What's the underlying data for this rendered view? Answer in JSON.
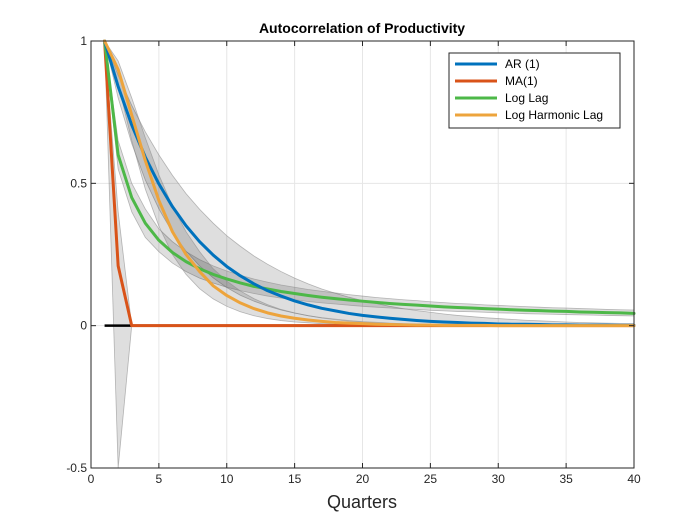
{
  "chart_data": {
    "type": "line",
    "title": "Autocorrelation of Productivity",
    "xlabel": "Quarters",
    "ylabel": "",
    "xlim": [
      0,
      40
    ],
    "ylim": [
      -0.5,
      1
    ],
    "xticks": [
      "0",
      "5",
      "10",
      "15",
      "20",
      "25",
      "30",
      "35",
      "40"
    ],
    "yticks": [
      "-0.5",
      "0",
      "0.5",
      "1"
    ],
    "grid": true,
    "legend_position": "top-right",
    "x": [
      1,
      2,
      3,
      4,
      5,
      6,
      7,
      8,
      9,
      10,
      11,
      12,
      13,
      14,
      15,
      16,
      17,
      18,
      19,
      20,
      21,
      22,
      23,
      24,
      25,
      26,
      27,
      28,
      29,
      30,
      31,
      32,
      33,
      34,
      35,
      36,
      37,
      38,
      39,
      40
    ],
    "series": [
      {
        "name": "AR (1)",
        "color": "#0072BD",
        "values": [
          1.0,
          0.84,
          0.705,
          0.592,
          0.498,
          0.418,
          0.351,
          0.295,
          0.248,
          0.208,
          0.175,
          0.147,
          0.123,
          0.104,
          0.087,
          0.073,
          0.061,
          0.052,
          0.043,
          0.036,
          0.031,
          0.026,
          0.022,
          0.018,
          0.015,
          0.013,
          0.011,
          0.009,
          0.008,
          0.006,
          0.005,
          0.005,
          0.004,
          0.003,
          0.003,
          0.002,
          0.002,
          0.002,
          0.001,
          0.001
        ],
        "band_lower": [
          1.0,
          0.8,
          0.64,
          0.512,
          0.41,
          0.328,
          0.262,
          0.21,
          0.168,
          0.134,
          0.107,
          0.086,
          0.069,
          0.055,
          0.044,
          0.035,
          0.028,
          0.023,
          0.018,
          0.014,
          0.012,
          0.009,
          0.007,
          0.006,
          0.005,
          0.004,
          0.003,
          0.002,
          0.002,
          0.002,
          0.001,
          0.001,
          0.001,
          0.001,
          0.001,
          0.0,
          0.0,
          0.0,
          0.0,
          0.0
        ],
        "band_upper": [
          1.0,
          0.88,
          0.774,
          0.681,
          0.6,
          0.528,
          0.464,
          0.409,
          0.36,
          0.316,
          0.279,
          0.245,
          0.216,
          0.19,
          0.167,
          0.147,
          0.129,
          0.114,
          0.1,
          0.088,
          0.078,
          0.068,
          0.06,
          0.053,
          0.047,
          0.041,
          0.036,
          0.032,
          0.028,
          0.025,
          0.022,
          0.019,
          0.017,
          0.015,
          0.013,
          0.011,
          0.01,
          0.009,
          0.008,
          0.007
        ]
      },
      {
        "name": "MA(1)",
        "color": "#D95319",
        "values": [
          1.0,
          0.21,
          0.0,
          0.0,
          0.0,
          0.0,
          0.0,
          0.0,
          0.0,
          0.0,
          0.0,
          0.0,
          0.0,
          0.0,
          0.0,
          0.0,
          0.0,
          0.0,
          0.0,
          0.0,
          0.0,
          0.0,
          0.0,
          0.0,
          0.0,
          0.0,
          0.0,
          0.0,
          0.0,
          0.0,
          0.0,
          0.0,
          0.0,
          0.0,
          0.0,
          0.0,
          0.0,
          0.0,
          0.0,
          0.0
        ],
        "band_lower": [
          1.0,
          -0.5,
          0.0,
          0.0,
          0.0,
          0.0,
          0.0,
          0.0,
          0.0,
          0.0,
          0.0,
          0.0,
          0.0,
          0.0,
          0.0,
          0.0,
          0.0,
          0.0,
          0.0,
          0.0,
          0.0,
          0.0,
          0.0,
          0.0,
          0.0,
          0.0,
          0.0,
          0.0,
          0.0,
          0.0,
          0.0,
          0.0,
          0.0,
          0.0,
          0.0,
          0.0,
          0.0,
          0.0,
          0.0,
          0.0
        ],
        "band_upper": [
          1.0,
          0.4,
          0.0,
          0.0,
          0.0,
          0.0,
          0.0,
          0.0,
          0.0,
          0.0,
          0.0,
          0.0,
          0.0,
          0.0,
          0.0,
          0.0,
          0.0,
          0.0,
          0.0,
          0.0,
          0.0,
          0.0,
          0.0,
          0.0,
          0.0,
          0.0,
          0.0,
          0.0,
          0.0,
          0.0,
          0.0,
          0.0,
          0.0,
          0.0,
          0.0,
          0.0,
          0.0,
          0.0,
          0.0,
          0.0
        ]
      },
      {
        "name": "Log Lag",
        "color": "#4DB848",
        "values": [
          1.0,
          0.6,
          0.45,
          0.36,
          0.3,
          0.257,
          0.225,
          0.2,
          0.18,
          0.164,
          0.15,
          0.138,
          0.129,
          0.12,
          0.113,
          0.106,
          0.1,
          0.095,
          0.09,
          0.086,
          0.082,
          0.078,
          0.075,
          0.072,
          0.069,
          0.066,
          0.064,
          0.062,
          0.06,
          0.058,
          0.056,
          0.054,
          0.053,
          0.051,
          0.05,
          0.048,
          0.047,
          0.046,
          0.045,
          0.043
        ],
        "band_lower": [
          1.0,
          0.55,
          0.4,
          0.31,
          0.26,
          0.22,
          0.19,
          0.167,
          0.15,
          0.135,
          0.123,
          0.113,
          0.104,
          0.097,
          0.091,
          0.085,
          0.08,
          0.076,
          0.072,
          0.068,
          0.065,
          0.062,
          0.059,
          0.057,
          0.054,
          0.052,
          0.05,
          0.049,
          0.047,
          0.045,
          0.044,
          0.042,
          0.041,
          0.04,
          0.039,
          0.038,
          0.037,
          0.036,
          0.035,
          0.034
        ],
        "band_upper": [
          1.0,
          0.65,
          0.5,
          0.41,
          0.34,
          0.295,
          0.26,
          0.232,
          0.21,
          0.192,
          0.177,
          0.164,
          0.153,
          0.143,
          0.135,
          0.127,
          0.121,
          0.115,
          0.109,
          0.104,
          0.099,
          0.095,
          0.091,
          0.088,
          0.084,
          0.081,
          0.078,
          0.076,
          0.073,
          0.071,
          0.069,
          0.067,
          0.065,
          0.063,
          0.062,
          0.06,
          0.059,
          0.057,
          0.056,
          0.055
        ]
      },
      {
        "name": "Log Harmonic Lag",
        "color": "#EDA43C",
        "values": [
          1.0,
          0.9,
          0.74,
          0.58,
          0.44,
          0.33,
          0.25,
          0.19,
          0.14,
          0.106,
          0.08,
          0.06,
          0.045,
          0.034,
          0.026,
          0.02,
          0.015,
          0.011,
          0.009,
          0.007,
          0.005,
          0.004,
          0.003,
          0.002,
          0.002,
          0.001,
          0.001,
          0.001,
          0.001,
          0.0,
          0.0,
          0.0,
          0.0,
          0.0,
          0.0,
          0.0,
          0.0,
          0.0,
          0.0,
          0.0
        ],
        "band_lower": [
          1.0,
          0.85,
          0.65,
          0.48,
          0.35,
          0.25,
          0.18,
          0.13,
          0.094,
          0.068,
          0.049,
          0.035,
          0.025,
          0.018,
          0.013,
          0.01,
          0.007,
          0.005,
          0.004,
          0.003,
          0.002,
          0.001,
          0.001,
          0.001,
          0.0,
          0.0,
          0.0,
          0.0,
          0.0,
          0.0,
          0.0,
          0.0,
          0.0,
          0.0,
          0.0,
          0.0,
          0.0,
          0.0,
          0.0,
          0.0
        ],
        "band_upper": [
          1.0,
          0.93,
          0.8,
          0.66,
          0.53,
          0.42,
          0.33,
          0.26,
          0.2,
          0.157,
          0.122,
          0.095,
          0.074,
          0.057,
          0.045,
          0.035,
          0.027,
          0.021,
          0.016,
          0.013,
          0.01,
          0.008,
          0.006,
          0.005,
          0.004,
          0.003,
          0.002,
          0.002,
          0.001,
          0.001,
          0.001,
          0.001,
          0.0,
          0.0,
          0.0,
          0.0,
          0.0,
          0.0,
          0.0,
          0.0
        ]
      }
    ],
    "zero_line": {
      "color": "#000000",
      "x": [
        1,
        40
      ],
      "y": 0
    },
    "band_color": "#000000"
  }
}
